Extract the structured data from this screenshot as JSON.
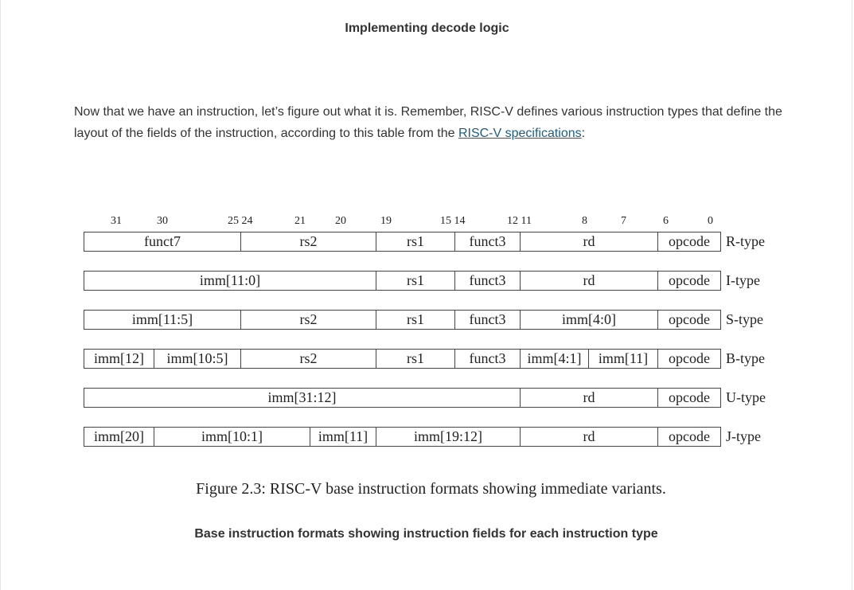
{
  "header": {
    "title": "Implementing decode logic"
  },
  "paragraph": {
    "text": "Now that we have an instruction, let’s figure out what it is. Remember, RISC-V defines various instruction types that define the layout of the fields of the instruction, according to this table from the ",
    "link": "RISC-V specifications",
    "tail": ":"
  },
  "figure": {
    "bit_numbers": [
      "31",
      "30",
      "25 24",
      "21",
      "20",
      "19",
      "15 14",
      "12 11",
      "8",
      "7",
      "6",
      "0"
    ],
    "rows": [
      {
        "type": "R-type",
        "fields": [
          "funct7",
          "rs2",
          "rs1",
          "funct3",
          "rd",
          "opcode"
        ]
      },
      {
        "type": "I-type",
        "fields": [
          "imm[11:0]",
          "rs1",
          "funct3",
          "rd",
          "opcode"
        ]
      },
      {
        "type": "S-type",
        "fields": [
          "imm[11:5]",
          "rs2",
          "rs1",
          "funct3",
          "imm[4:0]",
          "opcode"
        ]
      },
      {
        "type": "B-type",
        "fields": [
          "imm[12]",
          "imm[10:5]",
          "rs2",
          "rs1",
          "funct3",
          "imm[4:1]",
          "imm[11]",
          "opcode"
        ]
      },
      {
        "type": "U-type",
        "fields": [
          "imm[31:12]",
          "rd",
          "opcode"
        ]
      },
      {
        "type": "J-type",
        "fields": [
          "imm[20]",
          "imm[10:1]",
          "imm[11]",
          "imm[19:12]",
          "rd",
          "opcode"
        ]
      }
    ],
    "caption": "Figure 2.3: RISC-V base instruction formats showing immediate variants.",
    "subcaption": "Base instruction formats showing instruction fields for each instruction type"
  }
}
